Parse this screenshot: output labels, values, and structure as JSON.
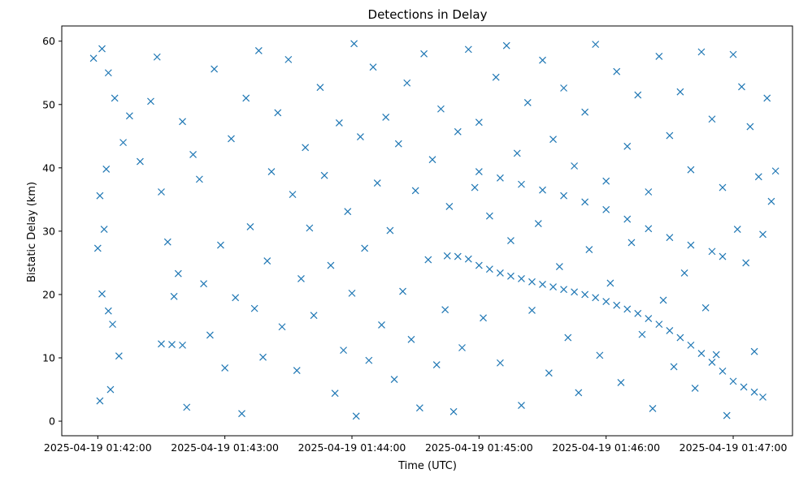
{
  "chart_data": {
    "type": "scatter",
    "title": "Detections in Delay",
    "xlabel": "Time (UTC)",
    "ylabel": "Bistatic Delay (km)",
    "marker": "x",
    "color": "#1f77b4",
    "grid": false,
    "legend": "none",
    "x_ticks": [
      "2025-04-19 01:42:00",
      "2025-04-19 01:43:00",
      "2025-04-19 01:44:00",
      "2025-04-19 01:45:00",
      "2025-04-19 01:46:00",
      "2025-04-19 01:47:00"
    ],
    "xlim": [
      "2025-04-19 01:41:43",
      "2025-04-19 01:47:28"
    ],
    "y_ticks": [
      0,
      10,
      20,
      30,
      40,
      50,
      60
    ],
    "ylim": [
      -2.3,
      62.4
    ],
    "series": [
      {
        "values_description": "",
        "points": [
          [
            "2025-04-19 01:44:45",
            26.1
          ],
          [
            "2025-04-19 01:44:50",
            26.0
          ],
          [
            "2025-04-19 01:44:55",
            25.6
          ],
          [
            "2025-04-19 01:45:00",
            24.6
          ],
          [
            "2025-04-19 01:45:05",
            24.0
          ],
          [
            "2025-04-19 01:45:10",
            23.4
          ],
          [
            "2025-04-19 01:45:15",
            22.9
          ],
          [
            "2025-04-19 01:45:20",
            22.5
          ],
          [
            "2025-04-19 01:45:25",
            22.0
          ],
          [
            "2025-04-19 01:45:30",
            21.6
          ],
          [
            "2025-04-19 01:45:35",
            21.2
          ],
          [
            "2025-04-19 01:45:40",
            20.8
          ],
          [
            "2025-04-19 01:45:45",
            20.4
          ],
          [
            "2025-04-19 01:45:50",
            20.0
          ],
          [
            "2025-04-19 01:45:55",
            19.5
          ],
          [
            "2025-04-19 01:46:00",
            18.9
          ],
          [
            "2025-04-19 01:46:05",
            18.3
          ],
          [
            "2025-04-19 01:46:10",
            17.7
          ],
          [
            "2025-04-19 01:46:15",
            17.0
          ],
          [
            "2025-04-19 01:46:20",
            16.2
          ],
          [
            "2025-04-19 01:46:25",
            15.3
          ],
          [
            "2025-04-19 01:46:30",
            14.3
          ],
          [
            "2025-04-19 01:46:35",
            13.2
          ],
          [
            "2025-04-19 01:46:40",
            12.0
          ],
          [
            "2025-04-19 01:46:45",
            10.7
          ],
          [
            "2025-04-19 01:46:50",
            9.3
          ],
          [
            "2025-04-19 01:46:55",
            7.9
          ],
          [
            "2025-04-19 01:47:00",
            6.3
          ],
          [
            "2025-04-19 01:47:05",
            5.4
          ],
          [
            "2025-04-19 01:47:10",
            4.6
          ],
          [
            "2025-04-19 01:47:14",
            3.8
          ],
          [
            "2025-04-19 01:45:00",
            39.4
          ],
          [
            "2025-04-19 01:45:10",
            38.4
          ],
          [
            "2025-04-19 01:45:20",
            37.4
          ],
          [
            "2025-04-19 01:45:30",
            36.5
          ],
          [
            "2025-04-19 01:45:40",
            35.6
          ],
          [
            "2025-04-19 01:45:50",
            34.6
          ],
          [
            "2025-04-19 01:46:00",
            33.4
          ],
          [
            "2025-04-19 01:46:10",
            31.9
          ],
          [
            "2025-04-19 01:46:20",
            30.4
          ],
          [
            "2025-04-19 01:46:30",
            29.0
          ],
          [
            "2025-04-19 01:46:40",
            27.8
          ],
          [
            "2025-04-19 01:46:50",
            26.8
          ],
          [
            "2025-04-19 01:46:55",
            26.0
          ],
          [
            "2025-04-19 01:42:30",
            12.2
          ],
          [
            "2025-04-19 01:42:35",
            12.1
          ],
          [
            "2025-04-19 01:42:40",
            12.0
          ],
          [
            "2025-04-19 01:41:58",
            57.3
          ],
          [
            "2025-04-19 01:42:02",
            58.8
          ],
          [
            "2025-04-19 01:42:05",
            55.0
          ],
          [
            "2025-04-19 01:42:08",
            51.0
          ],
          [
            "2025-04-19 01:42:01",
            35.6
          ],
          [
            "2025-04-19 01:42:04",
            39.8
          ],
          [
            "2025-04-19 01:42:00",
            27.3
          ],
          [
            "2025-04-19 01:42:03",
            30.3
          ],
          [
            "2025-04-19 01:42:02",
            20.1
          ],
          [
            "2025-04-19 01:42:05",
            17.4
          ],
          [
            "2025-04-19 01:42:07",
            15.3
          ],
          [
            "2025-04-19 01:42:01",
            3.2
          ],
          [
            "2025-04-19 01:42:06",
            5.0
          ],
          [
            "2025-04-19 01:42:10",
            10.3
          ],
          [
            "2025-04-19 01:42:12",
            44.0
          ],
          [
            "2025-04-19 01:42:15",
            48.2
          ],
          [
            "2025-04-19 01:42:20",
            41.0
          ],
          [
            "2025-04-19 01:42:25",
            50.5
          ],
          [
            "2025-04-19 01:42:28",
            57.5
          ],
          [
            "2025-04-19 01:42:30",
            36.2
          ],
          [
            "2025-04-19 01:42:33",
            28.3
          ],
          [
            "2025-04-19 01:42:36",
            19.7
          ],
          [
            "2025-04-19 01:42:38",
            23.3
          ],
          [
            "2025-04-19 01:42:40",
            47.3
          ],
          [
            "2025-04-19 01:42:42",
            2.2
          ],
          [
            "2025-04-19 01:42:45",
            42.1
          ],
          [
            "2025-04-19 01:42:48",
            38.2
          ],
          [
            "2025-04-19 01:42:50",
            21.7
          ],
          [
            "2025-04-19 01:42:53",
            13.6
          ],
          [
            "2025-04-19 01:42:55",
            55.6
          ],
          [
            "2025-04-19 01:42:58",
            27.8
          ],
          [
            "2025-04-19 01:43:00",
            8.4
          ],
          [
            "2025-04-19 01:43:03",
            44.6
          ],
          [
            "2025-04-19 01:43:05",
            19.5
          ],
          [
            "2025-04-19 01:43:08",
            1.2
          ],
          [
            "2025-04-19 01:43:10",
            51.0
          ],
          [
            "2025-04-19 01:43:12",
            30.7
          ],
          [
            "2025-04-19 01:43:14",
            17.8
          ],
          [
            "2025-04-19 01:43:16",
            58.5
          ],
          [
            "2025-04-19 01:43:18",
            10.1
          ],
          [
            "2025-04-19 01:43:20",
            25.3
          ],
          [
            "2025-04-19 01:43:22",
            39.4
          ],
          [
            "2025-04-19 01:43:25",
            48.7
          ],
          [
            "2025-04-19 01:43:27",
            14.9
          ],
          [
            "2025-04-19 01:43:30",
            57.1
          ],
          [
            "2025-04-19 01:43:32",
            35.8
          ],
          [
            "2025-04-19 01:43:34",
            8.0
          ],
          [
            "2025-04-19 01:43:36",
            22.5
          ],
          [
            "2025-04-19 01:43:38",
            43.2
          ],
          [
            "2025-04-19 01:43:40",
            30.5
          ],
          [
            "2025-04-19 01:43:42",
            16.7
          ],
          [
            "2025-04-19 01:43:45",
            52.7
          ],
          [
            "2025-04-19 01:43:47",
            38.8
          ],
          [
            "2025-04-19 01:43:50",
            24.6
          ],
          [
            "2025-04-19 01:43:52",
            4.4
          ],
          [
            "2025-04-19 01:43:54",
            47.1
          ],
          [
            "2025-04-19 01:43:56",
            11.2
          ],
          [
            "2025-04-19 01:43:58",
            33.1
          ],
          [
            "2025-04-19 01:44:00",
            20.2
          ],
          [
            "2025-04-19 01:44:01",
            59.6
          ],
          [
            "2025-04-19 01:44:02",
            0.8
          ],
          [
            "2025-04-19 01:44:04",
            44.9
          ],
          [
            "2025-04-19 01:44:06",
            27.3
          ],
          [
            "2025-04-19 01:44:08",
            9.6
          ],
          [
            "2025-04-19 01:44:10",
            55.9
          ],
          [
            "2025-04-19 01:44:12",
            37.6
          ],
          [
            "2025-04-19 01:44:14",
            15.2
          ],
          [
            "2025-04-19 01:44:16",
            48.0
          ],
          [
            "2025-04-19 01:44:18",
            30.1
          ],
          [
            "2025-04-19 01:44:20",
            6.6
          ],
          [
            "2025-04-19 01:44:22",
            43.8
          ],
          [
            "2025-04-19 01:44:24",
            20.5
          ],
          [
            "2025-04-19 01:44:26",
            53.4
          ],
          [
            "2025-04-19 01:44:28",
            12.9
          ],
          [
            "2025-04-19 01:44:30",
            36.4
          ],
          [
            "2025-04-19 01:44:32",
            2.1
          ],
          [
            "2025-04-19 01:44:34",
            58.0
          ],
          [
            "2025-04-19 01:44:36",
            25.5
          ],
          [
            "2025-04-19 01:44:38",
            41.3
          ],
          [
            "2025-04-19 01:44:40",
            8.9
          ],
          [
            "2025-04-19 01:44:42",
            49.3
          ],
          [
            "2025-04-19 01:44:44",
            17.6
          ],
          [
            "2025-04-19 01:44:46",
            33.9
          ],
          [
            "2025-04-19 01:44:48",
            1.5
          ],
          [
            "2025-04-19 01:44:50",
            45.7
          ],
          [
            "2025-04-19 01:44:52",
            11.6
          ],
          [
            "2025-04-19 01:44:55",
            58.7
          ],
          [
            "2025-04-19 01:44:58",
            36.9
          ],
          [
            "2025-04-19 01:45:00",
            47.2
          ],
          [
            "2025-04-19 01:45:02",
            16.3
          ],
          [
            "2025-04-19 01:45:05",
            32.4
          ],
          [
            "2025-04-19 01:45:08",
            54.3
          ],
          [
            "2025-04-19 01:45:10",
            9.2
          ],
          [
            "2025-04-19 01:45:13",
            59.3
          ],
          [
            "2025-04-19 01:45:15",
            28.5
          ],
          [
            "2025-04-19 01:45:18",
            42.3
          ],
          [
            "2025-04-19 01:45:20",
            2.5
          ],
          [
            "2025-04-19 01:45:23",
            50.3
          ],
          [
            "2025-04-19 01:45:25",
            17.5
          ],
          [
            "2025-04-19 01:45:28",
            31.2
          ],
          [
            "2025-04-19 01:45:30",
            57.0
          ],
          [
            "2025-04-19 01:45:33",
            7.6
          ],
          [
            "2025-04-19 01:45:35",
            44.5
          ],
          [
            "2025-04-19 01:45:38",
            24.4
          ],
          [
            "2025-04-19 01:45:40",
            52.6
          ],
          [
            "2025-04-19 01:45:42",
            13.2
          ],
          [
            "2025-04-19 01:45:45",
            40.3
          ],
          [
            "2025-04-19 01:45:47",
            4.5
          ],
          [
            "2025-04-19 01:45:50",
            48.8
          ],
          [
            "2025-04-19 01:45:52",
            27.1
          ],
          [
            "2025-04-19 01:45:55",
            59.5
          ],
          [
            "2025-04-19 01:45:57",
            10.4
          ],
          [
            "2025-04-19 01:46:00",
            37.9
          ],
          [
            "2025-04-19 01:46:02",
            21.8
          ],
          [
            "2025-04-19 01:46:05",
            55.2
          ],
          [
            "2025-04-19 01:46:07",
            6.1
          ],
          [
            "2025-04-19 01:46:10",
            43.4
          ],
          [
            "2025-04-19 01:46:12",
            28.2
          ],
          [
            "2025-04-19 01:46:15",
            51.5
          ],
          [
            "2025-04-19 01:46:17",
            13.7
          ],
          [
            "2025-04-19 01:46:20",
            36.2
          ],
          [
            "2025-04-19 01:46:22",
            2.0
          ],
          [
            "2025-04-19 01:46:25",
            57.6
          ],
          [
            "2025-04-19 01:46:27",
            19.1
          ],
          [
            "2025-04-19 01:46:30",
            45.1
          ],
          [
            "2025-04-19 01:46:32",
            8.6
          ],
          [
            "2025-04-19 01:46:35",
            52.0
          ],
          [
            "2025-04-19 01:46:37",
            23.4
          ],
          [
            "2025-04-19 01:46:40",
            39.7
          ],
          [
            "2025-04-19 01:46:42",
            5.2
          ],
          [
            "2025-04-19 01:46:45",
            58.3
          ],
          [
            "2025-04-19 01:46:47",
            17.9
          ],
          [
            "2025-04-19 01:46:50",
            47.7
          ],
          [
            "2025-04-19 01:46:52",
            10.5
          ],
          [
            "2025-04-19 01:46:55",
            36.9
          ],
          [
            "2025-04-19 01:46:57",
            0.9
          ],
          [
            "2025-04-19 01:47:00",
            57.9
          ],
          [
            "2025-04-19 01:47:02",
            30.3
          ],
          [
            "2025-04-19 01:47:04",
            52.8
          ],
          [
            "2025-04-19 01:47:06",
            25.0
          ],
          [
            "2025-04-19 01:47:08",
            46.5
          ],
          [
            "2025-04-19 01:47:10",
            11.0
          ],
          [
            "2025-04-19 01:47:12",
            38.6
          ],
          [
            "2025-04-19 01:47:14",
            29.5
          ],
          [
            "2025-04-19 01:47:16",
            51.0
          ],
          [
            "2025-04-19 01:47:18",
            34.7
          ],
          [
            "2025-04-19 01:47:20",
            39.5
          ]
        ]
      }
    ]
  }
}
